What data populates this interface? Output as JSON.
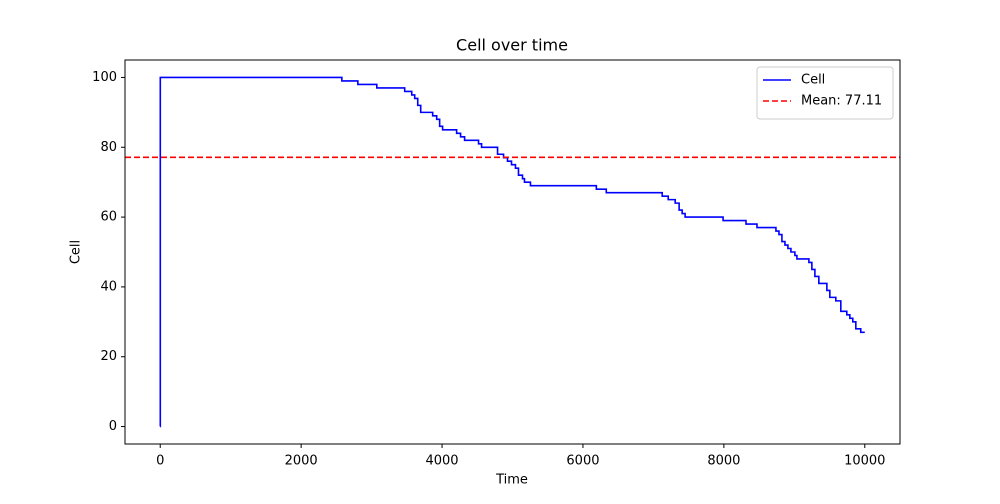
{
  "chart_data": {
    "type": "line",
    "drawstyle": "steps-post",
    "title": "Cell over time",
    "xlabel": "Time",
    "ylabel": "Cell",
    "x": [
      0,
      1,
      2578,
      2805,
      3074,
      3470,
      3570,
      3612,
      3655,
      3697,
      3867,
      3924,
      3966,
      4008,
      4207,
      4263,
      4320,
      4518,
      4561,
      4788,
      4873,
      4929,
      4986,
      5042,
      5085,
      5142,
      5170,
      5255,
      6190,
      6331,
      7125,
      7210,
      7309,
      7365,
      7408,
      7450,
      7989,
      8314,
      8470,
      8739,
      8782,
      8824,
      8867,
      8909,
      8952,
      9008,
      9037,
      9207,
      9249,
      9292,
      9348,
      9462,
      9504,
      9589,
      9660,
      9745,
      9788,
      9830,
      9873,
      9943,
      10000
    ],
    "series": [
      {
        "name": "Cell",
        "color": "#0000ff",
        "values": [
          0,
          100,
          99,
          98,
          97,
          96,
          95,
          94,
          92,
          90,
          89,
          88,
          86,
          85,
          84,
          83,
          82,
          81,
          80,
          78,
          77,
          76,
          75,
          74,
          72,
          71,
          70,
          69,
          68,
          67,
          66,
          65,
          64,
          62,
          61,
          60,
          59,
          58,
          57,
          56,
          55,
          53,
          52,
          51,
          50,
          49,
          48,
          47,
          45,
          43,
          41,
          39,
          37,
          36,
          33,
          32,
          31,
          30,
          28,
          27,
          27
        ]
      }
    ],
    "hlines": [
      {
        "value": 77.11,
        "label": "Mean: 77.11",
        "color": "#ff0000",
        "style": "dashed"
      }
    ],
    "xlim": [
      -500,
      10500
    ],
    "xticks": [
      0,
      2000,
      4000,
      6000,
      8000,
      10000
    ],
    "ylim": [
      -5,
      105
    ],
    "yticks": [
      0,
      20,
      40,
      60,
      80,
      100
    ],
    "legend": "upper right"
  }
}
